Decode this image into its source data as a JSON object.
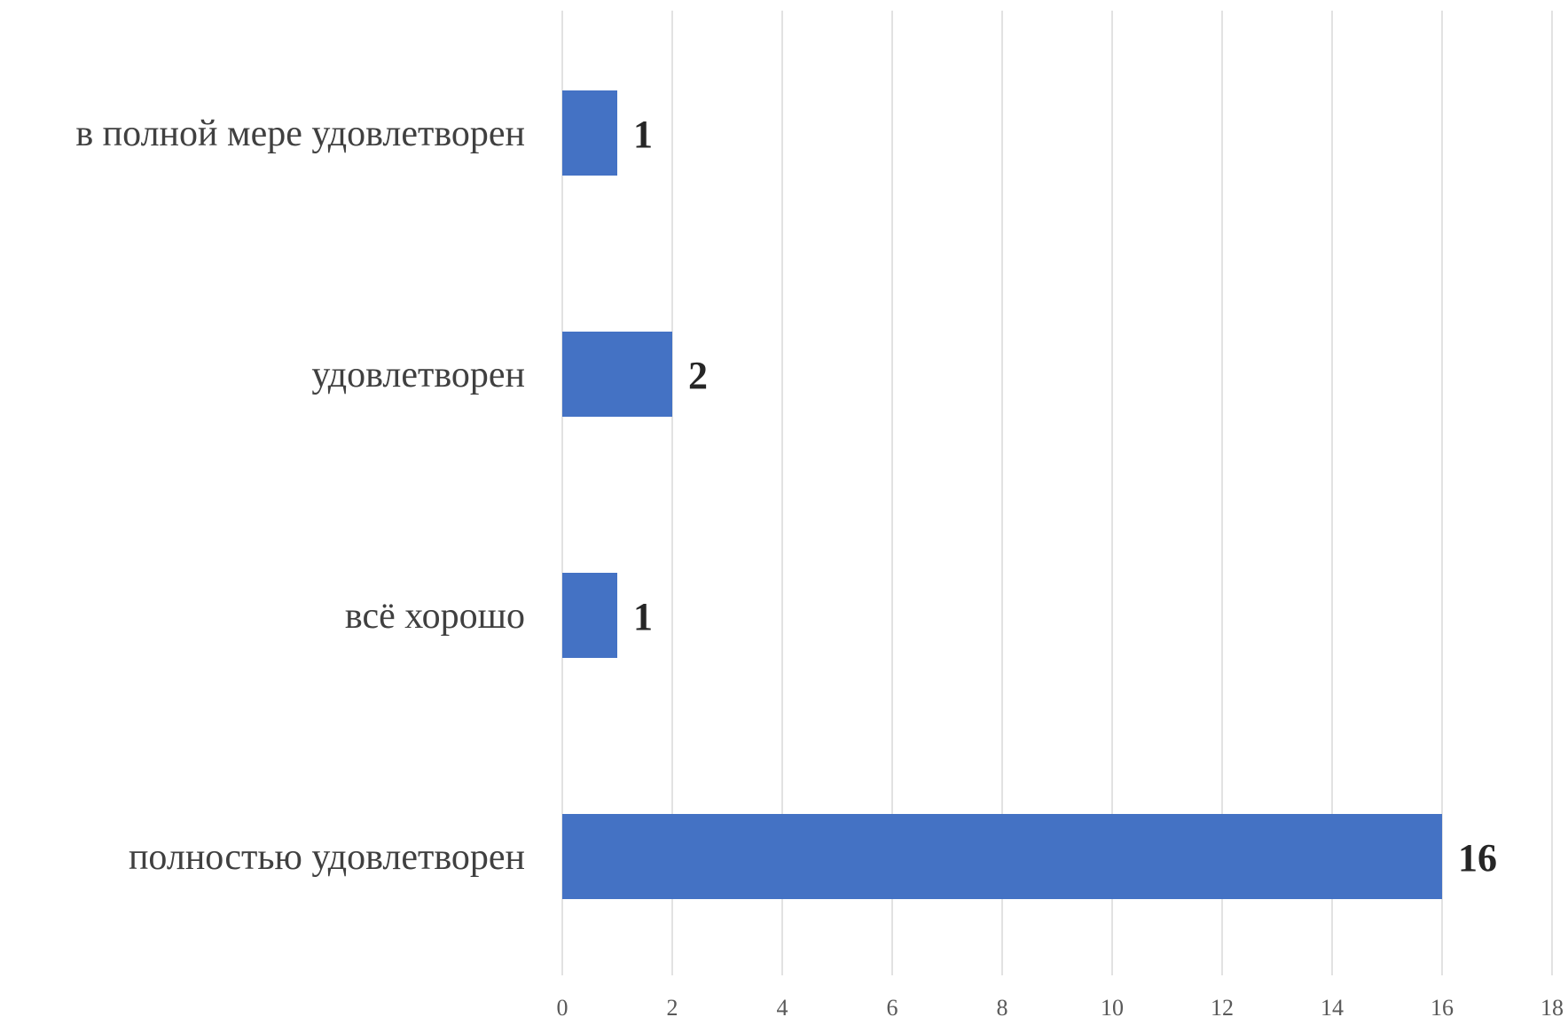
{
  "chart_data": {
    "type": "bar",
    "orientation": "horizontal",
    "title": "",
    "xlabel": "",
    "ylabel": "",
    "categories": [
      "в полной мере удовлетворен",
      "удовлетворен",
      "всё хорошо",
      "полностью удовлетворен"
    ],
    "values": [
      1,
      2,
      1,
      16
    ],
    "data_labels": [
      "1",
      "2",
      "1",
      "16"
    ],
    "xlim": [
      0,
      18
    ],
    "x_ticks": [
      0,
      2,
      4,
      6,
      8,
      10,
      12,
      14,
      16,
      18
    ],
    "x_tick_labels": [
      "0",
      "2",
      "4",
      "6",
      "8",
      "10",
      "12",
      "14",
      "16",
      "18"
    ],
    "grid": "vertical",
    "legend": "none",
    "bar_color": "#4472c4"
  }
}
